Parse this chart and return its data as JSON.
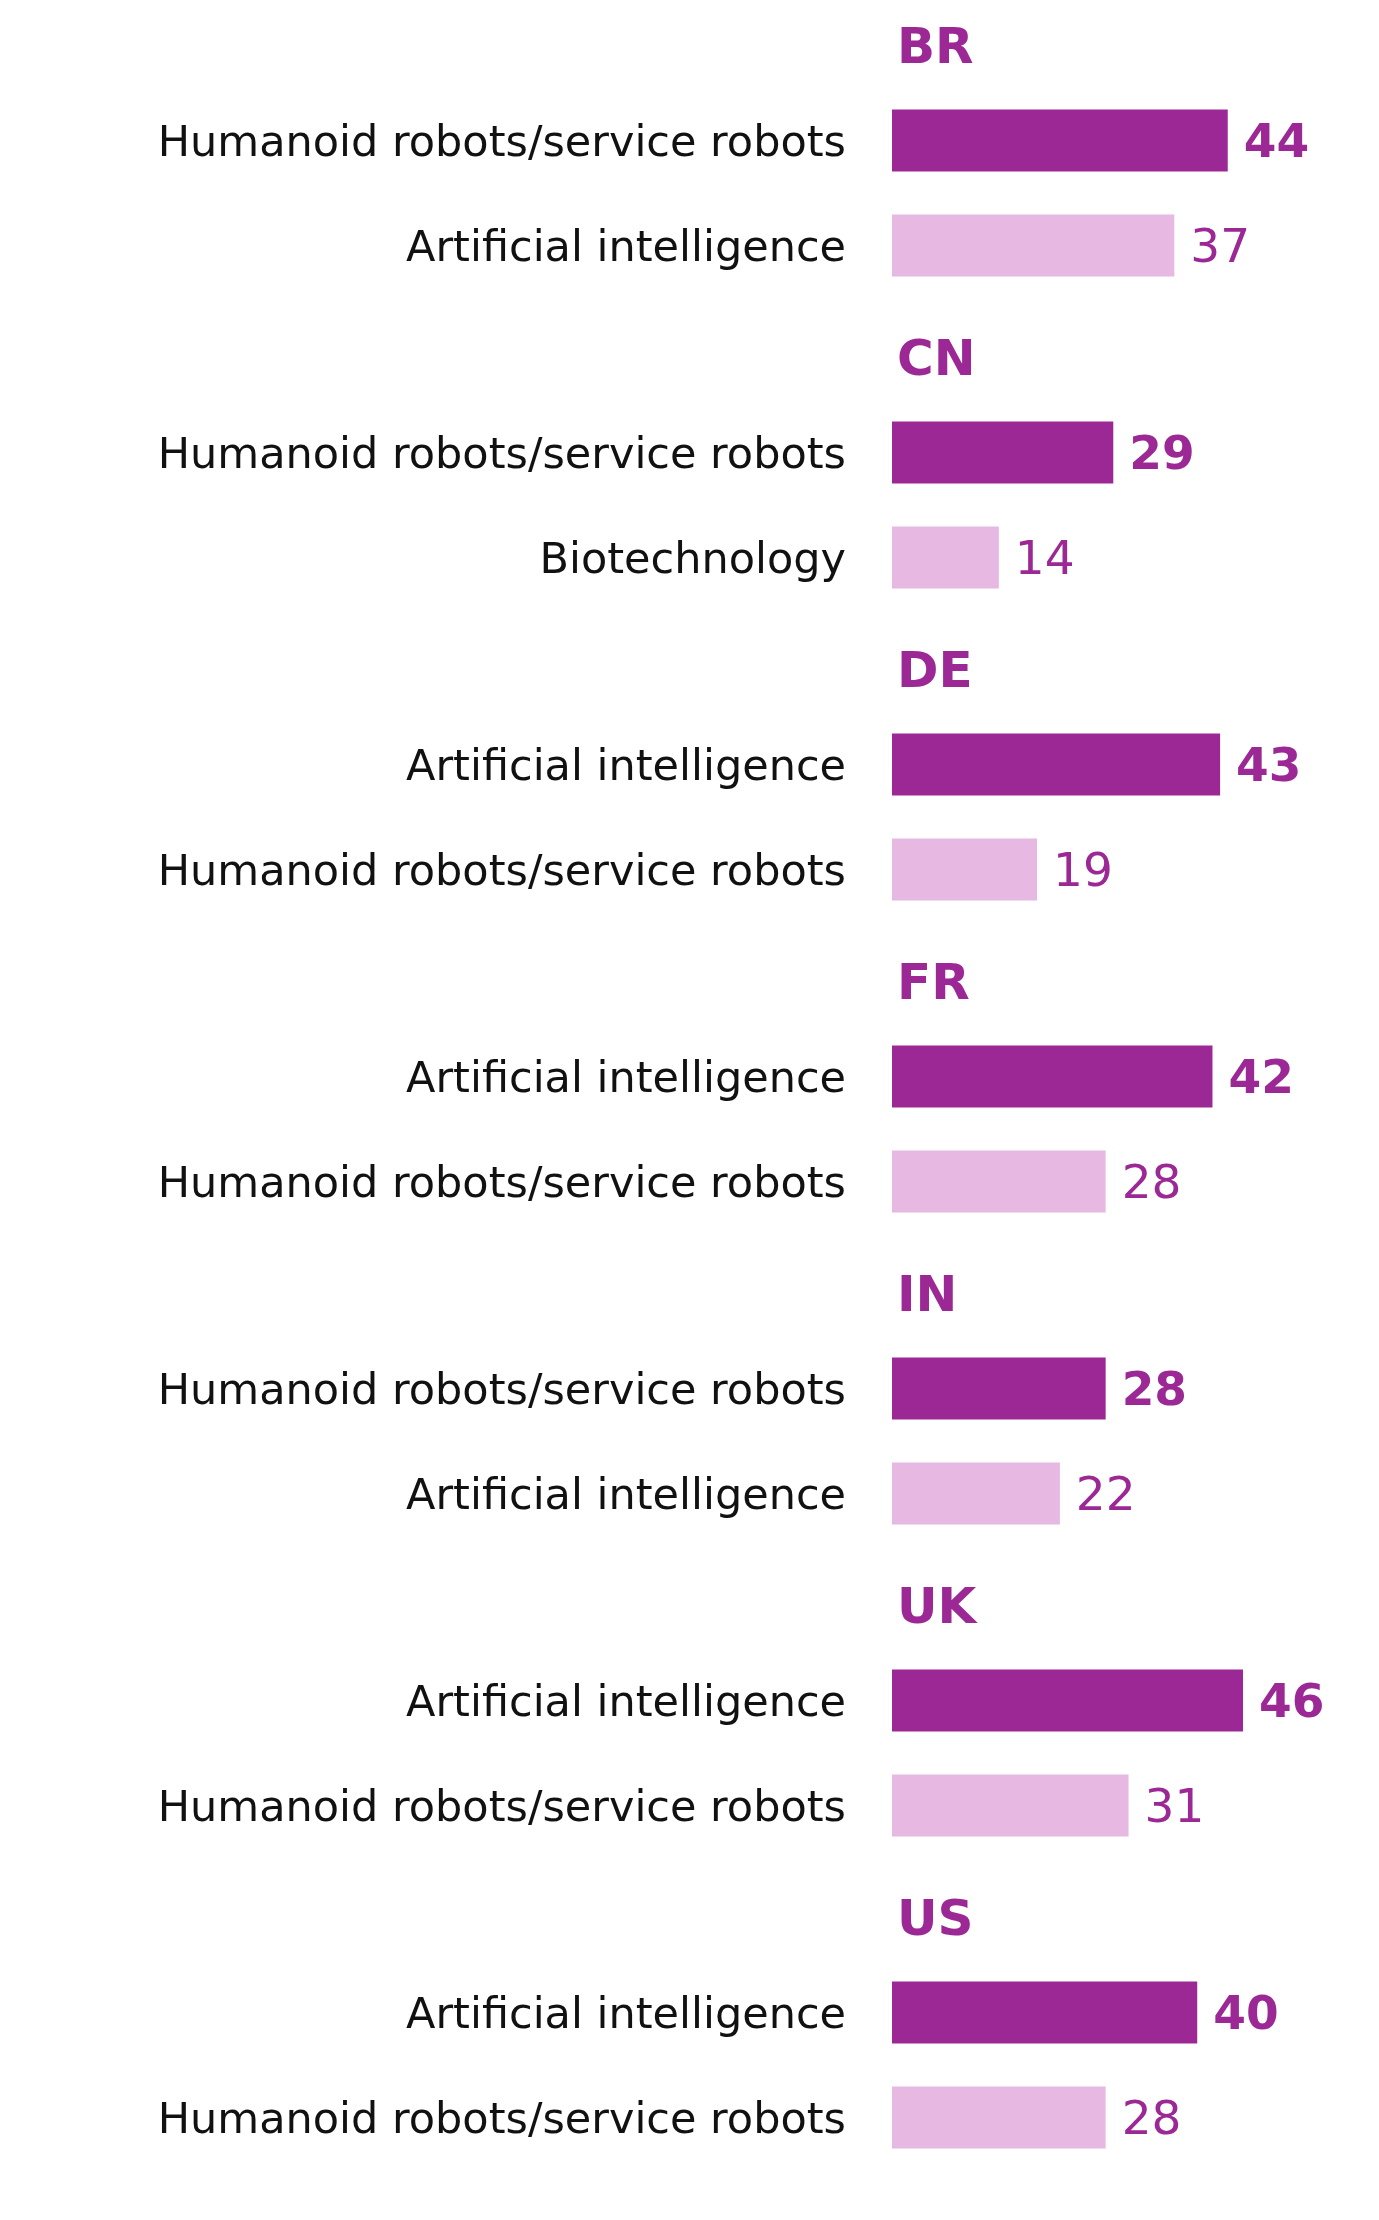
{
  "chart_data": [
    {
      "type": "bar",
      "orientation": "horizontal",
      "title": "BR",
      "categories": [
        "Humanoid robots/service robots",
        "Artificial intelligence"
      ],
      "values": [
        44,
        37
      ],
      "colors": [
        "#9b2895",
        "#e6b8e2"
      ],
      "data_labels": true
    },
    {
      "type": "bar",
      "orientation": "horizontal",
      "title": "CN",
      "categories": [
        "Humanoid robots/service robots",
        "Biotechnology"
      ],
      "values": [
        29,
        14
      ],
      "colors": [
        "#9b2895",
        "#e6b8e2"
      ],
      "data_labels": true
    },
    {
      "type": "bar",
      "orientation": "horizontal",
      "title": "DE",
      "categories": [
        "Artificial intelligence",
        "Humanoid robots/service robots"
      ],
      "values": [
        43,
        19
      ],
      "colors": [
        "#9b2895",
        "#e6b8e2"
      ],
      "data_labels": true
    },
    {
      "type": "bar",
      "orientation": "horizontal",
      "title": "FR",
      "categories": [
        "Artificial intelligence",
        "Humanoid robots/service robots"
      ],
      "values": [
        42,
        28
      ],
      "colors": [
        "#9b2895",
        "#e6b8e2"
      ],
      "data_labels": true
    },
    {
      "type": "bar",
      "orientation": "horizontal",
      "title": "IN",
      "categories": [
        "Humanoid robots/service robots",
        "Artificial intelligence"
      ],
      "values": [
        28,
        22
      ],
      "colors": [
        "#9b2895",
        "#e6b8e2"
      ],
      "data_labels": true
    },
    {
      "type": "bar",
      "orientation": "horizontal",
      "title": "UK",
      "categories": [
        "Artificial intelligence",
        "Humanoid robots/service robots"
      ],
      "values": [
        46,
        31
      ],
      "colors": [
        "#9b2895",
        "#e6b8e2"
      ],
      "data_labels": true
    },
    {
      "type": "bar",
      "orientation": "horizontal",
      "title": "US",
      "categories": [
        "Artificial intelligence",
        "Humanoid robots/service robots"
      ],
      "values": [
        40,
        28
      ],
      "colors": [
        "#9b2895",
        "#e6b8e2"
      ],
      "data_labels": true
    }
  ]
}
